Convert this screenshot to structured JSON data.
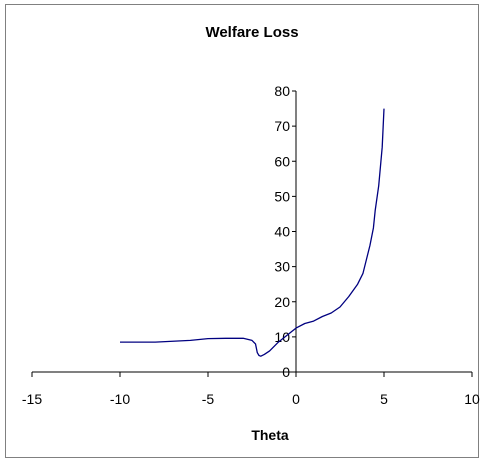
{
  "chart_data": {
    "type": "line",
    "title": "Welfare Loss",
    "xlabel": "Theta",
    "ylabel": "",
    "xlim": [
      -15,
      10
    ],
    "ylim": [
      0,
      80
    ],
    "x_ticks": [
      -15,
      -10,
      -5,
      0,
      5,
      10
    ],
    "y_ticks": [
      0,
      10,
      20,
      30,
      40,
      50,
      60,
      70,
      80
    ],
    "grid": false,
    "legend": "none",
    "series": [
      {
        "color": "#000080",
        "x": [
          -10,
          -8,
          -6,
          -5,
          -4,
          -3,
          -2.5,
          -2.3,
          -2.2,
          -2.1,
          -2.0,
          -1.8,
          -1.5,
          -1.0,
          -0.5,
          0,
          0.5,
          1.0,
          1.5,
          2.0,
          2.5,
          3.0,
          3.5,
          3.8,
          4.0,
          4.2,
          4.4,
          4.5,
          4.7,
          4.9,
          5.0
        ],
        "y": [
          8.5,
          8.5,
          9.0,
          9.5,
          9.6,
          9.6,
          9.0,
          8.0,
          5.5,
          4.7,
          4.5,
          5.0,
          6.0,
          8.5,
          10.5,
          12.5,
          13.8,
          14.5,
          15.8,
          16.8,
          18.5,
          21.5,
          25.0,
          28.0,
          32.0,
          36.0,
          41.0,
          46.0,
          53.0,
          64.0,
          75.0
        ]
      }
    ]
  }
}
